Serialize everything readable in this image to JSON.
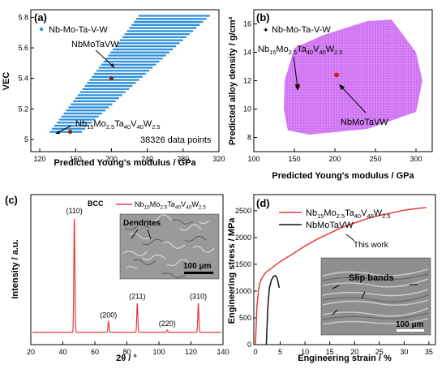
{
  "figure": {
    "panels": {
      "a": {
        "label": "(a)"
      },
      "b": {
        "label": "(b)"
      },
      "c": {
        "label": "(c)"
      },
      "d": {
        "label": "(d)"
      }
    }
  },
  "chart_data": [
    {
      "panel": "a",
      "type": "scatter",
      "title": "",
      "xlabel": "Predicted Young's modulus / GPa",
      "ylabel": "VEC",
      "xlim": [
        110,
        320
      ],
      "ylim": [
        4.92,
        5.85
      ],
      "xticks": [
        120,
        160,
        200,
        240,
        280,
        320
      ],
      "yticks": [
        5.0,
        5.2,
        5.4,
        5.6,
        5.8
      ],
      "legend": "top-left",
      "series": [
        {
          "name": "Nb-Mo-Ta-V-W",
          "color": "#2e8fd8",
          "band": {
            "y_min": 5.05,
            "y_max": 5.8,
            "y_step": 0.02,
            "x_left_at_ymin": 131,
            "x_left_at_ymax": 229,
            "x_right_at_ymin": 167,
            "x_right_at_ymax": 308
          }
        }
      ],
      "highlights": [
        {
          "label": "NbMoTaVW",
          "x": 200,
          "y": 5.4,
          "color": "#7a2c10"
        },
        {
          "label_parts": [
            "Nb",
            "15",
            "Mo",
            "2.5",
            "Ta",
            "40",
            "V",
            "40",
            "W",
            "2.5"
          ],
          "x": 154,
          "y": 5.05,
          "color": "#7a2c10"
        }
      ],
      "annotation": "38326 data points"
    },
    {
      "panel": "b",
      "type": "scatter",
      "title": "",
      "xlabel": "Predicted Young's modulus / GPa",
      "ylabel": "Predicted alloy density / g/cm³",
      "xlim": [
        100,
        320
      ],
      "ylim": [
        7,
        17
      ],
      "xticks": [
        100,
        150,
        200,
        250,
        300
      ],
      "yticks": [
        8,
        10,
        12,
        14,
        16
      ],
      "legend": "top-left",
      "series": [
        {
          "name": "Nb-Mo-Ta-V-W",
          "color": "#c75cf0",
          "region": [
            [
              142,
              8.5
            ],
            [
              168,
              8.2
            ],
            [
              240,
              8.6
            ],
            [
              300,
              9.8
            ],
            [
              308,
              12.0
            ],
            [
              300,
              14.0
            ],
            [
              270,
              16.3
            ],
            [
              240,
              16.2
            ],
            [
              185,
              15.2
            ],
            [
              150,
              14.3
            ],
            [
              138,
              12.0
            ],
            [
              137,
              10.0
            ]
          ]
        }
      ],
      "highlights": [
        {
          "label_parts": [
            "Nb",
            "15",
            "Mo",
            "2.5",
            "Ta",
            "40",
            "V",
            "40",
            "W",
            "2.5"
          ],
          "x": 154,
          "y": 11.6,
          "color": "#d42020"
        },
        {
          "label": "NbMoTaVW",
          "x": 202,
          "y": 12.4,
          "color": "#d42020"
        }
      ]
    },
    {
      "panel": "c",
      "type": "line",
      "title": "",
      "xlabel": "2θ / °",
      "ylabel": "Intensity / a.u.",
      "xlim": [
        20,
        140
      ],
      "ylim": [
        0,
        100
      ],
      "xticks": [
        20,
        40,
        60,
        80,
        100,
        120,
        140
      ],
      "legend": "top-right",
      "series": [
        {
          "name_parts": [
            "Nb",
            "15",
            "Mo",
            "2.5",
            "Ta",
            "40",
            "V",
            "40",
            "W",
            "2.5"
          ],
          "color": "#e43c3c",
          "baseline": 6,
          "peaks": [
            {
              "x": 47.2,
              "height": 100,
              "label": "(110)"
            },
            {
              "x": 68.5,
              "height": 15,
              "label": "(200)"
            },
            {
              "x": 86.5,
              "height": 30,
              "label": "(211)"
            },
            {
              "x": 105.2,
              "height": 8,
              "label": "(220)"
            },
            {
              "x": 124.6,
              "height": 30,
              "label": "(310)"
            }
          ]
        }
      ],
      "annotations": {
        "phase": "BCC",
        "inset_label": "Dendrites",
        "scale_bar": "100 μm"
      }
    },
    {
      "panel": "d",
      "type": "line",
      "title": "",
      "xlabel": "Engineering strain / %",
      "ylabel": "Engineering stress / MPa",
      "xlim": [
        0,
        36
      ],
      "ylim": [
        0,
        2800
      ],
      "xticks": [
        0,
        5,
        10,
        15,
        20,
        25,
        30,
        35
      ],
      "yticks": [
        0,
        500,
        1000,
        1500,
        2000,
        2500
      ],
      "legend": "top-left",
      "series": [
        {
          "name_parts": [
            "Nb",
            "15",
            "Mo",
            "2.5",
            "Ta",
            "40",
            "V",
            "40",
            "W",
            "2.5"
          ],
          "color": "#e43c3c",
          "x": [
            0.0,
            0.3,
            0.6,
            0.9,
            1.2,
            1.6,
            2.0,
            3.0,
            4.0,
            5.0,
            7.5,
            10.0,
            12.5,
            15.0,
            17.5,
            20.0,
            22.5,
            25.0,
            27.5,
            30.0,
            32.5,
            34.5
          ],
          "y": [
            0,
            700,
            1000,
            1150,
            1220,
            1280,
            1340,
            1410,
            1480,
            1550,
            1690,
            1840,
            1970,
            2080,
            2190,
            2270,
            2350,
            2410,
            2460,
            2510,
            2540,
            2560
          ]
        },
        {
          "name": "NbMoTaVW",
          "color": "#111111",
          "x": [
            2.2,
            2.5,
            2.8,
            3.2,
            3.6,
            4.0,
            4.4,
            4.8
          ],
          "y": [
            0,
            700,
            1050,
            1200,
            1270,
            1290,
            1240,
            1060
          ]
        }
      ],
      "annotations": {
        "this_work": "This work",
        "inset_label": "Slip bands",
        "scale_bar": "100 μm"
      }
    }
  ]
}
